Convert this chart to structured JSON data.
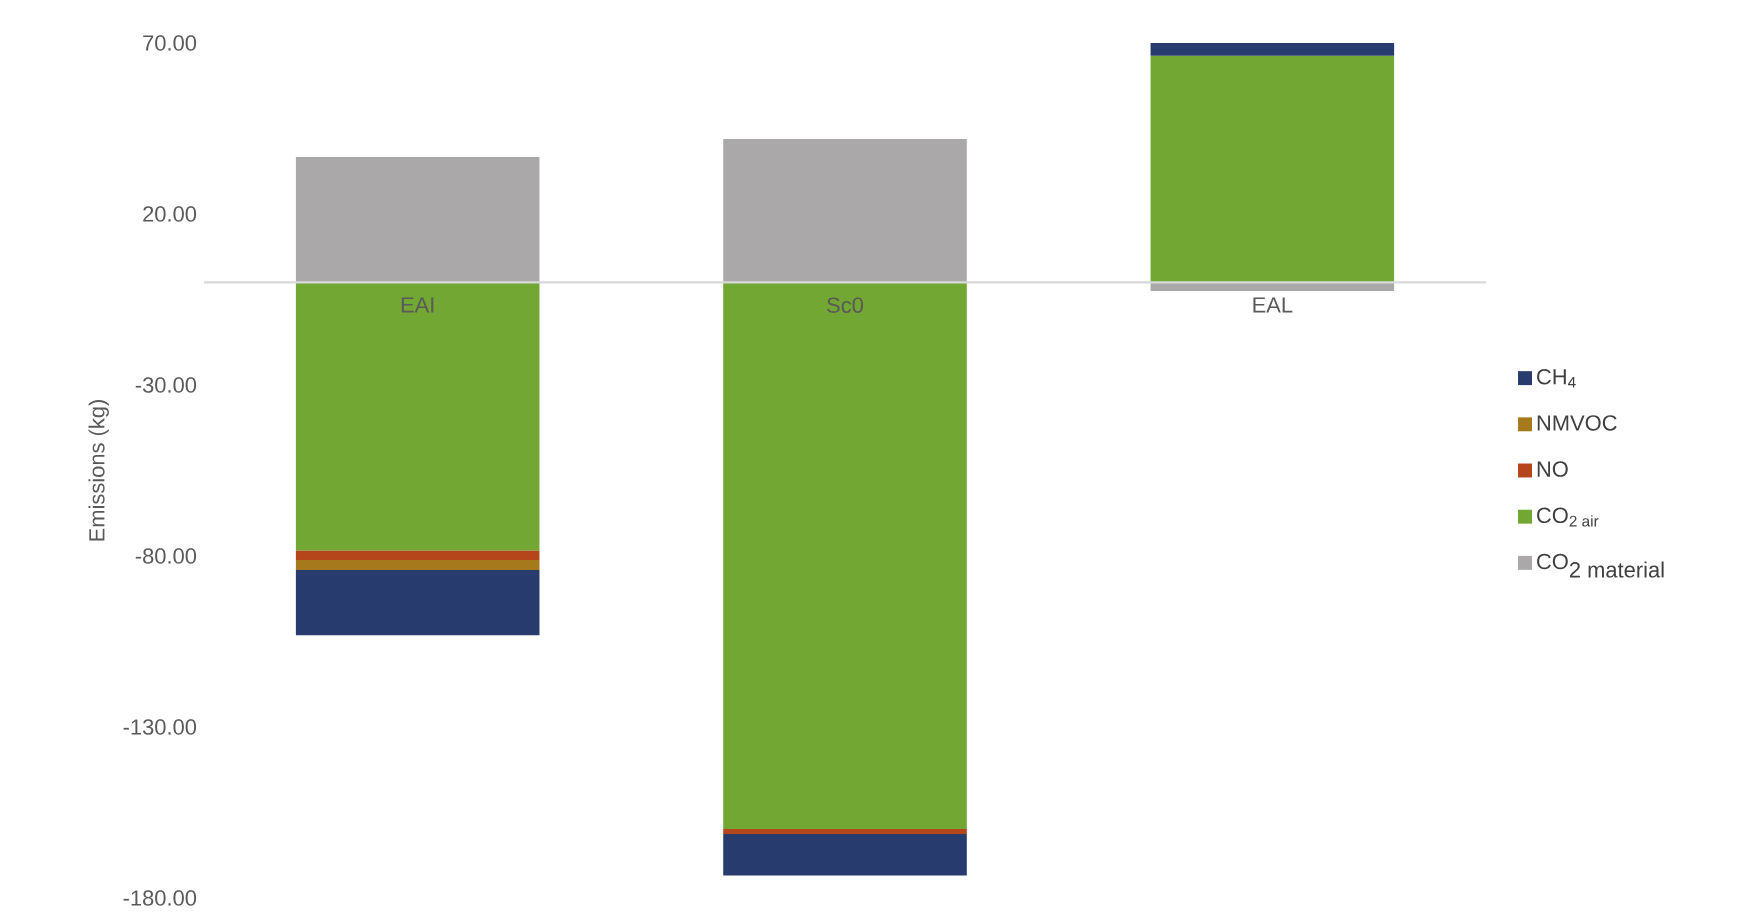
{
  "chart_data": {
    "type": "bar",
    "stacked": true,
    "ylabel": "Emissions (kg)",
    "categories": [
      "EAI",
      "Sc0",
      "EAL"
    ],
    "series": [
      {
        "name": "\\hbox{CO}_{\\hbox{2 material}}",
        "color": "#aaa8a8",
        "values": [
          36.7,
          41.9,
          -2.5
        ]
      },
      {
        "name": "CO$_{2 air}$",
        "color": "#72a733",
        "values": [
          -78.5,
          -159.8,
          66.3
        ]
      },
      {
        "name": "NO",
        "color": "#b5451b",
        "values": [
          -2.7,
          -1.5,
          0
        ]
      },
      {
        "name": "NMVOC",
        "color": "#a67a1c",
        "values": [
          -2.9,
          0,
          0
        ]
      },
      {
        "name": "CH$_{4}$",
        "color": "#283b6e",
        "values": [
          -19.1,
          -12.1,
          3.7
        ]
      }
    ],
    "ylim": [
      -180,
      70
    ],
    "yticks": [
      {
        "value": 70,
        "label": "70.00"
      },
      {
        "value": 20,
        "label": "20.00"
      },
      {
        "value": -30,
        "label": "-30.00"
      },
      {
        "value": -80,
        "label": "-80.00"
      },
      {
        "value": -130,
        "label": "-130.00"
      },
      {
        "value": -180,
        "label": "-180.00"
      }
    ],
    "legend": "right"
  }
}
